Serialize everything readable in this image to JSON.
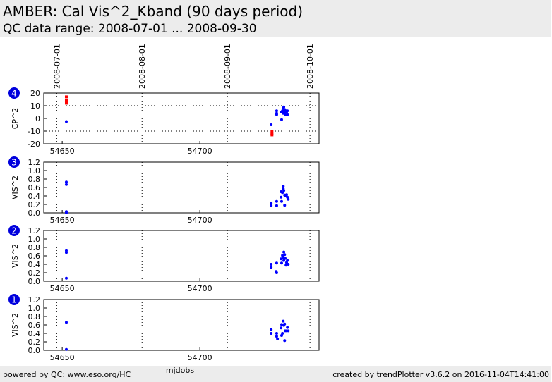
{
  "header": {
    "title": "AMBER: Cal Vis^2_Kband (90 days period)",
    "subtitle": "QC data range: 2008-07-01 ... 2008-09-30"
  },
  "footer": {
    "left": "powered by QC: www.eso.org/HC",
    "right": "created by trendPlotter v3.6.2 on 2016-11-04T14:41:00"
  },
  "chart_data": [
    {
      "type": "scatter",
      "panel_label": "4",
      "ylabel": "CP^2",
      "xlim": [
        54643.3,
        54743.3
      ],
      "xticks": [
        54650,
        54700
      ],
      "x2ticks": [
        {
          "value": 54648,
          "label": "2008-07-01"
        },
        {
          "value": 54679,
          "label": "2008-08-01"
        },
        {
          "value": 54710,
          "label": "2008-09-01"
        },
        {
          "value": 54740,
          "label": "2008-10-01"
        }
      ],
      "ylim": [
        -20,
        20
      ],
      "yticks": [
        -20,
        -10,
        0,
        10,
        20
      ],
      "hlines": [
        10,
        -10
      ],
      "series": [
        {
          "color": "#0000ff",
          "marker": "circle",
          "x": [
            54651.5,
            54725.9,
            54727.9,
            54727.9,
            54727.9,
            54729.5,
            54729.7,
            54730.0,
            54730.3,
            54730.3,
            54730.5,
            54730.8,
            54730.8,
            54731.0,
            54731.3,
            54731.5,
            54731.8,
            54731.8
          ],
          "values": [
            -2.5,
            -5,
            6,
            4,
            3,
            5,
            -1,
            6,
            4,
            8,
            9,
            5,
            7,
            3,
            6,
            5,
            6,
            3
          ]
        },
        {
          "color": "#ff0000",
          "marker": "square",
          "x": [
            54651.5,
            54651.5,
            54651.5,
            54726.2,
            54726.2,
            54726.2
          ],
          "values": [
            17,
            14,
            12,
            -10,
            -12,
            -13
          ]
        }
      ]
    },
    {
      "type": "scatter",
      "panel_label": "3",
      "ylabel": "VIS^2",
      "xlim": [
        54643.3,
        54743.3
      ],
      "xticks": [
        54650,
        54700
      ],
      "ylim": [
        0,
        1.2
      ],
      "yticks": [
        {
          "value": 0,
          "label": "0.0"
        },
        0.2,
        0.4,
        0.6,
        0.8,
        {
          "value": 1,
          "label": "1.0"
        },
        1.2
      ],
      "series": [
        {
          "color": "#0000ff",
          "marker": "circle",
          "x": [
            54651.5,
            54651.5,
            54651.5,
            54651.5,
            54725.9,
            54725.9,
            54727.9,
            54727.9,
            54729.5,
            54729.7,
            54730.0,
            54730.3,
            54730.3,
            54730.5,
            54730.8,
            54730.8,
            54731.0,
            54731.5,
            54731.8,
            54732.1,
            54729.5
          ],
          "values": [
            0.73,
            0.67,
            0.03,
            0.0,
            0.23,
            0.17,
            0.27,
            0.17,
            0.5,
            0.27,
            0.48,
            0.57,
            0.63,
            0.53,
            0.42,
            0.18,
            0.4,
            0.43,
            0.37,
            0.32,
            0.37
          ]
        }
      ]
    },
    {
      "type": "scatter",
      "panel_label": "2",
      "ylabel": "VIS^2",
      "xlim": [
        54643.3,
        54743.3
      ],
      "xticks": [
        54650,
        54700
      ],
      "ylim": [
        0,
        1.2
      ],
      "yticks": [
        {
          "value": 0,
          "label": "0.0"
        },
        0.2,
        0.4,
        0.6,
        0.8,
        {
          "value": 1,
          "label": "1.0"
        },
        1.2
      ],
      "series": [
        {
          "color": "#0000ff",
          "marker": "circle",
          "x": [
            54651.5,
            54651.5,
            54651.5,
            54725.9,
            54725.9,
            54727.7,
            54727.9,
            54727.9,
            54729.5,
            54729.7,
            54730.0,
            54730.3,
            54730.5,
            54730.5,
            54730.8,
            54731.0,
            54731.3,
            54731.5,
            54731.8,
            54732.1
          ],
          "values": [
            0.72,
            0.68,
            0.07,
            0.4,
            0.33,
            0.23,
            0.2,
            0.43,
            0.53,
            0.43,
            0.61,
            0.56,
            0.69,
            0.49,
            0.63,
            0.54,
            0.38,
            0.44,
            0.49,
            0.4
          ]
        }
      ]
    },
    {
      "type": "scatter",
      "panel_label": "1",
      "ylabel": "VIS^2",
      "xlabel": "mjdobs",
      "xlim": [
        54643.3,
        54743.3
      ],
      "xticks": [
        54650,
        54700
      ],
      "ylim": [
        0,
        1.2
      ],
      "yticks": [
        {
          "value": 0,
          "label": "0.0"
        },
        0.2,
        0.4,
        0.6,
        0.8,
        {
          "value": 1,
          "label": "1.0"
        },
        1.2
      ],
      "series": [
        {
          "color": "#0000ff",
          "marker": "circle",
          "x": [
            54651.5,
            54651.5,
            54725.9,
            54725.9,
            54727.9,
            54727.9,
            54728.2,
            54729.5,
            54729.7,
            54730.0,
            54730.3,
            54730.5,
            54730.8,
            54730.8,
            54731.0,
            54731.5,
            54731.8,
            54732.1,
            54729.7
          ],
          "values": [
            0.66,
            0.02,
            0.49,
            0.4,
            0.4,
            0.33,
            0.27,
            0.53,
            0.61,
            0.4,
            0.69,
            0.59,
            0.62,
            0.23,
            0.46,
            0.46,
            0.54,
            0.46,
            0.35
          ]
        }
      ]
    }
  ]
}
